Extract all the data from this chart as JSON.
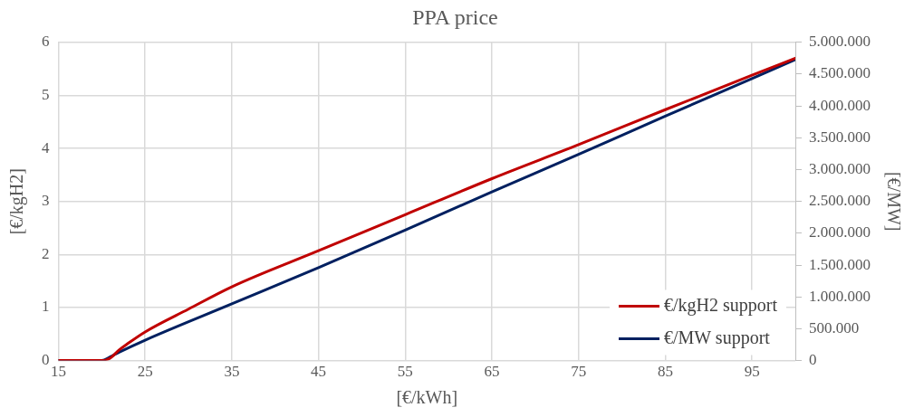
{
  "chart_data": {
    "type": "line",
    "title": "PPA price",
    "xlabel": "[€/kWh]",
    "ylabel": "[€/kgH2]",
    "y2label": "[€/MW]",
    "xlim": [
      15,
      100
    ],
    "xticks": [
      15,
      25,
      35,
      45,
      55,
      65,
      75,
      85,
      95
    ],
    "ylim": [
      0,
      6
    ],
    "yticks": [
      0,
      1,
      2,
      3,
      4,
      5,
      6
    ],
    "y2lim": [
      0,
      5000000
    ],
    "y2ticks": [
      {
        "value": 0,
        "label": "0"
      },
      {
        "value": 500000,
        "label": "500.000"
      },
      {
        "value": 1000000,
        "label": "1.000.000"
      },
      {
        "value": 1500000,
        "label": "1.500.000"
      },
      {
        "value": 2000000,
        "label": "2.000.000"
      },
      {
        "value": 2500000,
        "label": "2.500.000"
      },
      {
        "value": 3000000,
        "label": "3.000.000"
      },
      {
        "value": 3500000,
        "label": "3.500.000"
      },
      {
        "value": 4000000,
        "label": "4.000.000"
      },
      {
        "value": 4500000,
        "label": "4.500.000"
      },
      {
        "value": 5000000,
        "label": "5.000.000"
      }
    ],
    "grid": true,
    "legend": "bottom right",
    "marker": "none",
    "line_style": "solid",
    "series": [
      {
        "name": "€/kgH2 support",
        "color": "#c00000",
        "x": [
          15,
          20,
          21,
          22,
          23,
          25,
          30,
          35,
          45,
          55,
          65,
          75,
          85,
          95,
          100
        ],
        "values": [
          0,
          0,
          0.05,
          0.2,
          0.32,
          0.54,
          0.97,
          1.39,
          2.07,
          2.75,
          3.43,
          4.07,
          4.73,
          5.38,
          5.7
        ]
      },
      {
        "name": "€/MW support",
        "color": "#002060",
        "axis": "y2",
        "x": [
          15,
          20,
          21,
          22,
          25,
          35,
          45,
          55,
          65,
          75,
          85,
          95,
          100
        ],
        "values": [
          0,
          0,
          60000,
          130000,
          320000,
          890000,
          1460000,
          2050000,
          2650000,
          3240000,
          3840000,
          4430000,
          4730000
        ]
      }
    ]
  }
}
